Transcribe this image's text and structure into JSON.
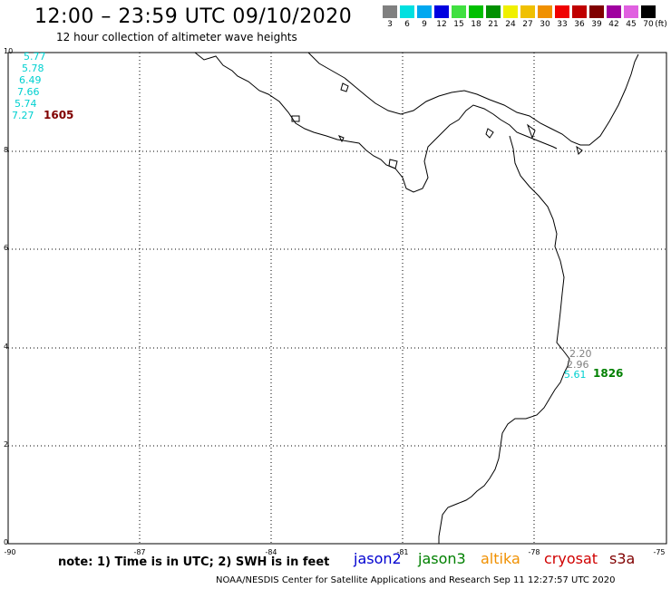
{
  "header": {
    "title": "12:00 – 23:59 UTC 09/10/2020",
    "subtitle": "12 hour collection of altimeter wave heights"
  },
  "legend": {
    "unit": "(ft)",
    "items": [
      {
        "label": "3",
        "color": "#808080"
      },
      {
        "label": "6",
        "color": "#00e0e0"
      },
      {
        "label": "9",
        "color": "#00a8f0"
      },
      {
        "label": "12",
        "color": "#0000e0"
      },
      {
        "label": "15",
        "color": "#40e040"
      },
      {
        "label": "18",
        "color": "#00c000"
      },
      {
        "label": "21",
        "color": "#009000"
      },
      {
        "label": "24",
        "color": "#f0f000"
      },
      {
        "label": "27",
        "color": "#f0c000"
      },
      {
        "label": "30",
        "color": "#f09000"
      },
      {
        "label": "33",
        "color": "#f00000"
      },
      {
        "label": "36",
        "color": "#c00000"
      },
      {
        "label": "39",
        "color": "#800000"
      },
      {
        "label": "42",
        "color": "#a000a0"
      },
      {
        "label": "45",
        "color": "#e060e0"
      },
      {
        "label": "70",
        "color": "#000000"
      }
    ]
  },
  "axes": {
    "lat_labels": [
      "10",
      "8",
      "6",
      "4",
      "2",
      "0"
    ],
    "lon_labels": [
      "-90",
      "-87",
      "-84",
      "-81",
      "-78",
      "-75"
    ]
  },
  "observations": {
    "left_track": [
      {
        "value": "5.77",
        "color": "#00d0d0"
      },
      {
        "value": "5.78",
        "color": "#00d0d0"
      },
      {
        "value": "6.49",
        "color": "#00d0d0"
      },
      {
        "value": "7.66",
        "color": "#00d0d0"
      },
      {
        "value": "5.74",
        "color": "#00d0d0"
      },
      {
        "value": "7.27",
        "color": "#00d0d0"
      }
    ],
    "left_time": {
      "value": "1605",
      "color": "#800000"
    },
    "right_track": [
      {
        "value": "2.20",
        "color": "#808080"
      },
      {
        "value": "2.96",
        "color": "#808080"
      },
      {
        "value": "5.61",
        "color": "#00d0d0"
      }
    ],
    "right_time": {
      "value": "1826",
      "color": "#008000"
    }
  },
  "footer": {
    "note": "note:  1) Time is in UTC;  2) SWH is in feet",
    "satellites": [
      {
        "name": "jason2",
        "color": "#0000d0"
      },
      {
        "name": "jason3",
        "color": "#008000"
      },
      {
        "name": "altika",
        "color": "#f09000"
      },
      {
        "name": "cryosat",
        "color": "#d00000"
      },
      {
        "name": "s3a",
        "color": "#800000"
      }
    ],
    "credit": "NOAA/NESDIS Center for Satellite Applications and Research     Sep 11 12:27:57 UTC 2020"
  }
}
